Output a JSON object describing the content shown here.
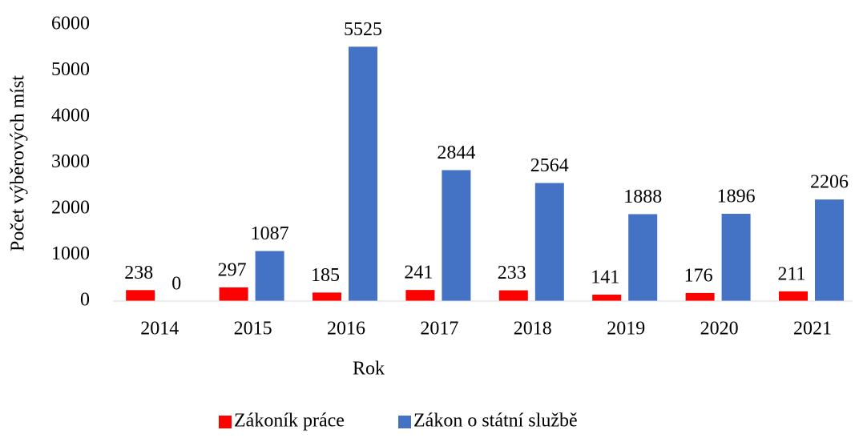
{
  "chart_data": {
    "type": "bar",
    "categories": [
      "2014",
      "2015",
      "2016",
      "2017",
      "2018",
      "2019",
      "2020",
      "2021"
    ],
    "series": [
      {
        "name": "Zákoník práce",
        "color": "#ff0000",
        "values": [
          238,
          297,
          185,
          241,
          233,
          141,
          176,
          211
        ]
      },
      {
        "name": "Zákon o státní službě",
        "color": "#4472c4",
        "values": [
          0,
          1087,
          5525,
          2844,
          2564,
          1888,
          1896,
          2206
        ]
      }
    ],
    "ylim": [
      0,
      6000
    ],
    "yticks": [
      0,
      1000,
      2000,
      3000,
      4000,
      5000,
      6000
    ],
    "xlabel": "Rok",
    "ylabel": "Počet výběrových míst",
    "grid": false,
    "legend": "bottom"
  }
}
